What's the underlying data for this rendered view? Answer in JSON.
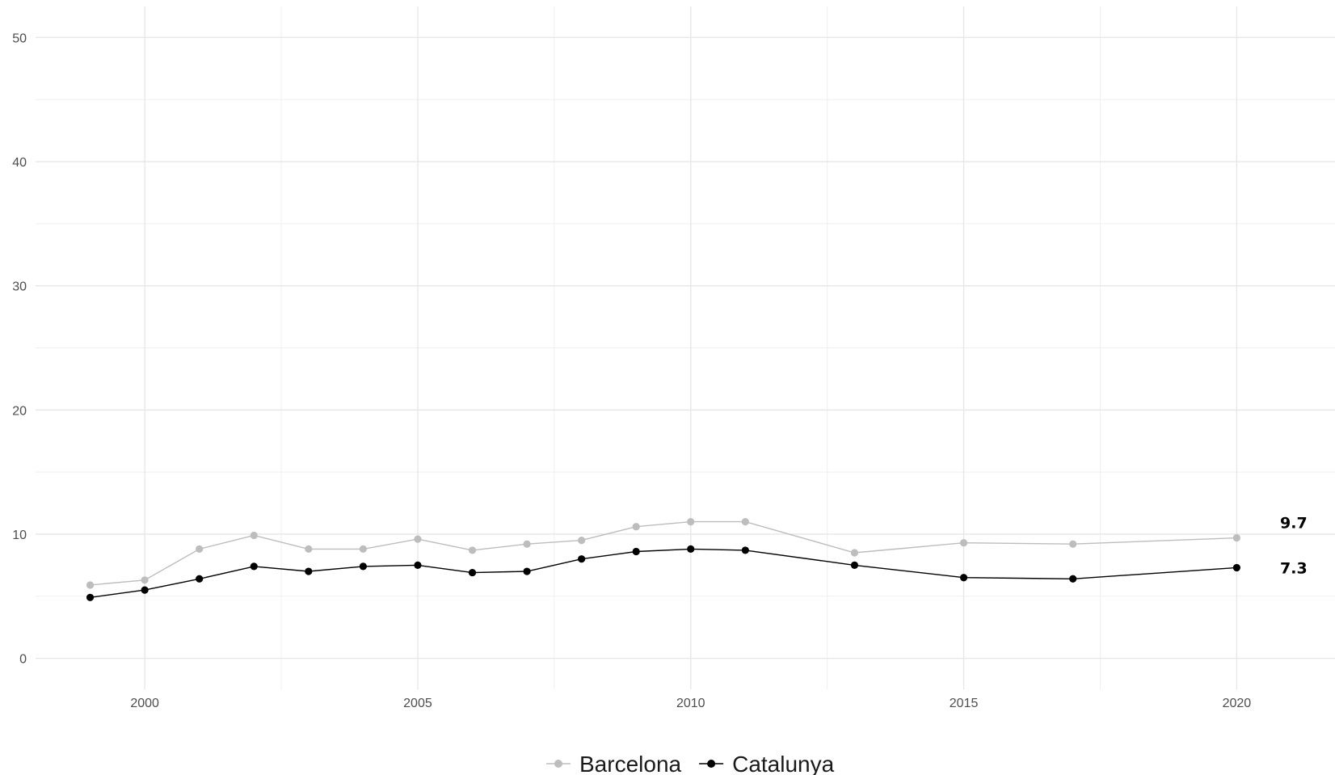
{
  "chart_data": {
    "type": "line",
    "x": [
      1999,
      2000,
      2001,
      2002,
      2003,
      2004,
      2005,
      2006,
      2007,
      2008,
      2009,
      2010,
      2011,
      2013,
      2015,
      2017,
      2020
    ],
    "series": [
      {
        "name": "Barcelona",
        "color": "#bdbdbd",
        "values": [
          5.9,
          6.3,
          8.8,
          9.9,
          8.8,
          8.8,
          9.6,
          8.7,
          9.2,
          9.5,
          10.6,
          11.0,
          11.0,
          8.5,
          9.3,
          9.2,
          9.7
        ]
      },
      {
        "name": "Catalunya",
        "color": "#000000",
        "values": [
          4.9,
          5.5,
          6.4,
          7.4,
          7.0,
          7.4,
          7.5,
          6.9,
          7.0,
          8.0,
          8.6,
          8.8,
          8.7,
          7.5,
          6.5,
          6.4,
          7.3
        ]
      }
    ],
    "end_labels": [
      "9.7",
      "7.3"
    ],
    "x_ticks": [
      "2000",
      "2005",
      "2010",
      "2015",
      "2020"
    ],
    "y_ticks": [
      "0",
      "10",
      "20",
      "30",
      "40",
      "50"
    ],
    "xlim": [
      1998,
      2021.8
    ],
    "ylim": [
      -2.5,
      52.5
    ],
    "grid": true,
    "legend_position": "bottom",
    "title": "",
    "xlabel": "",
    "ylabel": ""
  }
}
